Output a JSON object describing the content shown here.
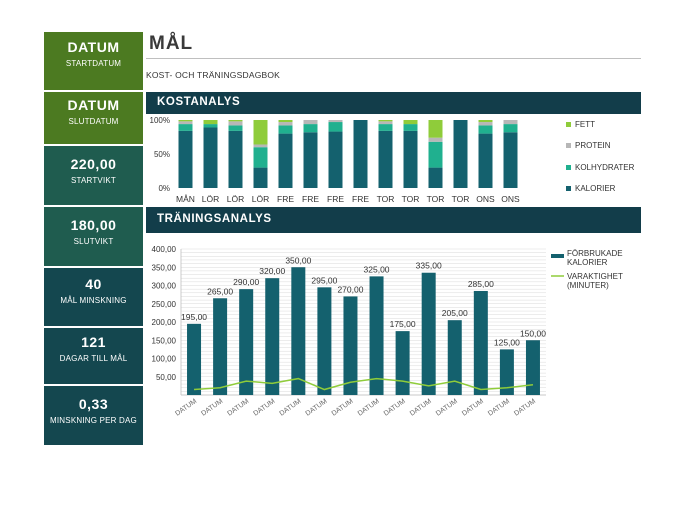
{
  "sidebar": [
    {
      "big": "DATUM",
      "small": "STARTDATUM",
      "bg": "#4c7a21"
    },
    {
      "big": "DATUM",
      "small": "SLUTDATUM",
      "bg": "#4c7a21"
    },
    {
      "big": "220,00",
      "small": "STARTVIKT",
      "bg": "#1f5c4f"
    },
    {
      "big": "180,00",
      "small": "SLUTVIKT",
      "bg": "#1f5c4f"
    },
    {
      "big": "40",
      "small": "MÅL MINSKNING",
      "bg": "#14474f"
    },
    {
      "big": "121",
      "small": "DAGAR TILL MÅL",
      "bg": "#14474f"
    },
    {
      "big": "0,33",
      "small": "MINSKNING PER DAG",
      "bg": "#14474f"
    }
  ],
  "header": {
    "title": "MÅL",
    "subtitle": "KOST- OCH TRÄNINGSDAGBOK"
  },
  "sections": {
    "cost": "KOSTANALYS",
    "training": "TRÄNINGSANALYS"
  },
  "colors": {
    "kalorier": "#14616e",
    "kolhydrater": "#20b08f",
    "protein": "#b7b7b7",
    "fett": "#8fcc3a",
    "burned": "#14616e",
    "duration": "#8fcc3a"
  },
  "chart_data": [
    {
      "type": "bar",
      "stacked": "percent",
      "categories": [
        "MÅN",
        "LÖR",
        "LÖR",
        "LÖR",
        "FRE",
        "FRE",
        "FRE",
        "FRE",
        "TOR",
        "TOR",
        "TOR",
        "TOR",
        "ONS",
        "ONS"
      ],
      "series": [
        {
          "name": "KALORIER",
          "values": [
            84,
            89,
            84,
            30,
            80,
            82,
            83,
            100,
            84,
            84,
            30,
            100,
            80,
            82
          ]
        },
        {
          "name": "KOLHYDRATER",
          "values": [
            10,
            5,
            8,
            30,
            12,
            12,
            14,
            0,
            10,
            10,
            38,
            0,
            12,
            12
          ]
        },
        {
          "name": "PROTEIN",
          "values": [
            4,
            0,
            6,
            4,
            5,
            6,
            3,
            0,
            4,
            0,
            6,
            0,
            5,
            6
          ]
        },
        {
          "name": "FETT",
          "values": [
            2,
            6,
            2,
            36,
            3,
            0,
            0,
            0,
            2,
            6,
            26,
            0,
            3,
            0
          ]
        }
      ],
      "yticks": [
        "100%",
        "50%",
        "0%"
      ],
      "ylim": [
        0,
        100
      ],
      "legend": "right"
    },
    {
      "type": "bar",
      "categories": [
        "DATUM",
        "DATUM",
        "DATUM",
        "DATUM",
        "DATUM",
        "DATUM",
        "DATUM",
        "DATUM",
        "DATUM",
        "DATUM",
        "DATUM",
        "DATUM",
        "DATUM",
        "DATUM"
      ],
      "series": [
        {
          "name": "FÖRBRUKADE KALORIER",
          "values": [
            195,
            265,
            290,
            320,
            350,
            295,
            270,
            325,
            175,
            335,
            205,
            285,
            125,
            150
          ],
          "labels": [
            "195,00",
            "265,00",
            "290,00",
            "320,00",
            "350,00",
            "295,00",
            "270,00",
            "325,00",
            "175,00",
            "335,00",
            "205,00",
            "285,00",
            "125,00",
            "150,00"
          ]
        },
        {
          "name": "VARAKTIGHET (MINUTER)",
          "type": "line",
          "values": [
            15,
            20,
            38,
            32,
            45,
            15,
            35,
            45,
            38,
            25,
            38,
            15,
            20,
            28
          ]
        }
      ],
      "yticks": [
        "400,00",
        "350,00",
        "300,00",
        "250,00",
        "200,00",
        "150,00",
        "100,00",
        "50,00"
      ],
      "ylim": [
        0,
        400
      ],
      "grid": true,
      "legend": "right"
    }
  ]
}
